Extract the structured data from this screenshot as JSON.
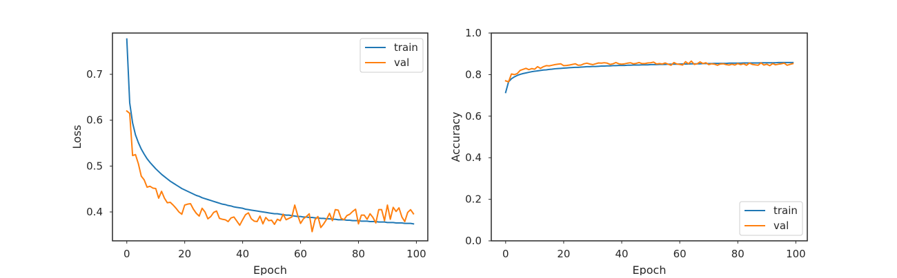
{
  "chart_data": [
    {
      "type": "line",
      "title": "",
      "xlabel": "Epoch",
      "ylabel": "Loss",
      "xlim": [
        -4.95,
        103.95
      ],
      "ylim": [
        0.337,
        0.79
      ],
      "xticks": [
        0,
        20,
        40,
        60,
        80,
        100
      ],
      "xtick_labels": [
        "0",
        "20",
        "40",
        "60",
        "80",
        "100"
      ],
      "yticks": [
        0.4,
        0.5,
        0.6,
        0.7
      ],
      "ytick_labels": [
        "0.4",
        "0.5",
        "0.6",
        "0.7"
      ],
      "grid": false,
      "legend": "top-right",
      "series": [
        {
          "name": "train",
          "color": "#1f77b4",
          "x": [
            0,
            1,
            2,
            3,
            4,
            5,
            6,
            7,
            8,
            9,
            10,
            11,
            12,
            13,
            14,
            15,
            16,
            17,
            18,
            19,
            20,
            21,
            22,
            23,
            24,
            25,
            26,
            27,
            28,
            29,
            30,
            31,
            32,
            33,
            34,
            35,
            36,
            37,
            38,
            39,
            40,
            41,
            42,
            43,
            44,
            45,
            46,
            47,
            48,
            49,
            50,
            51,
            52,
            53,
            54,
            55,
            56,
            57,
            58,
            59,
            60,
            61,
            62,
            63,
            64,
            65,
            66,
            67,
            68,
            69,
            70,
            71,
            72,
            73,
            74,
            75,
            76,
            77,
            78,
            79,
            80,
            81,
            82,
            83,
            84,
            85,
            86,
            87,
            88,
            89,
            90,
            91,
            92,
            93,
            94,
            95,
            96,
            97,
            98,
            99
          ],
          "values": [
            0.777,
            0.638,
            0.594,
            0.568,
            0.551,
            0.537,
            0.526,
            0.516,
            0.508,
            0.501,
            0.494,
            0.488,
            0.482,
            0.477,
            0.472,
            0.467,
            0.463,
            0.459,
            0.455,
            0.451,
            0.448,
            0.445,
            0.442,
            0.439,
            0.436,
            0.434,
            0.431,
            0.429,
            0.427,
            0.425,
            0.423,
            0.421,
            0.419,
            0.417,
            0.416,
            0.414,
            0.413,
            0.411,
            0.41,
            0.409,
            0.408,
            0.406,
            0.405,
            0.404,
            0.403,
            0.402,
            0.401,
            0.4,
            0.399,
            0.398,
            0.397,
            0.396,
            0.396,
            0.395,
            0.394,
            0.393,
            0.393,
            0.392,
            0.391,
            0.39,
            0.39,
            0.389,
            0.389,
            0.388,
            0.388,
            0.387,
            0.387,
            0.386,
            0.386,
            0.385,
            0.385,
            0.384,
            0.384,
            0.383,
            0.383,
            0.383,
            0.382,
            0.382,
            0.381,
            0.381,
            0.381,
            0.38,
            0.38,
            0.38,
            0.379,
            0.379,
            0.379,
            0.378,
            0.378,
            0.378,
            0.377,
            0.377,
            0.377,
            0.376,
            0.376,
            0.376,
            0.375,
            0.375,
            0.375,
            0.374
          ]
        },
        {
          "name": "val",
          "color": "#ff7f0e",
          "x": [
            0,
            1,
            2,
            3,
            4,
            5,
            6,
            7,
            8,
            9,
            10,
            11,
            12,
            13,
            14,
            15,
            16,
            17,
            18,
            19,
            20,
            21,
            22,
            23,
            24,
            25,
            26,
            27,
            28,
            29,
            30,
            31,
            32,
            33,
            34,
            35,
            36,
            37,
            38,
            39,
            40,
            41,
            42,
            43,
            44,
            45,
            46,
            47,
            48,
            49,
            50,
            51,
            52,
            53,
            54,
            55,
            56,
            57,
            58,
            59,
            60,
            61,
            62,
            63,
            64,
            65,
            66,
            67,
            68,
            69,
            70,
            71,
            72,
            73,
            74,
            75,
            76,
            77,
            78,
            79,
            80,
            81,
            82,
            83,
            84,
            85,
            86,
            87,
            88,
            89,
            90,
            91,
            92,
            93,
            94,
            95,
            96,
            97,
            98,
            99
          ],
          "values": [
            0.62,
            0.615,
            0.523,
            0.525,
            0.505,
            0.478,
            0.47,
            0.454,
            0.456,
            0.452,
            0.451,
            0.43,
            0.445,
            0.43,
            0.42,
            0.421,
            0.415,
            0.408,
            0.4,
            0.395,
            0.415,
            0.417,
            0.418,
            0.406,
            0.397,
            0.391,
            0.408,
            0.4,
            0.385,
            0.39,
            0.399,
            0.402,
            0.386,
            0.384,
            0.383,
            0.379,
            0.387,
            0.389,
            0.38,
            0.371,
            0.383,
            0.394,
            0.398,
            0.385,
            0.38,
            0.379,
            0.391,
            0.374,
            0.388,
            0.381,
            0.382,
            0.373,
            0.384,
            0.381,
            0.395,
            0.383,
            0.386,
            0.389,
            0.415,
            0.393,
            0.375,
            0.385,
            0.39,
            0.396,
            0.357,
            0.383,
            0.39,
            0.366,
            0.374,
            0.384,
            0.397,
            0.381,
            0.405,
            0.404,
            0.386,
            0.383,
            0.392,
            0.395,
            0.401,
            0.406,
            0.374,
            0.393,
            0.393,
            0.384,
            0.396,
            0.388,
            0.376,
            0.405,
            0.405,
            0.381,
            0.415,
            0.384,
            0.41,
            0.401,
            0.409,
            0.389,
            0.379,
            0.399,
            0.405,
            0.396
          ]
        }
      ]
    },
    {
      "type": "line",
      "title": "",
      "xlabel": "Epoch",
      "ylabel": "Accuracy",
      "xlim": [
        -4.95,
        103.95
      ],
      "ylim": [
        0.0,
        1.0
      ],
      "xticks": [
        0,
        20,
        40,
        60,
        80,
        100
      ],
      "xtick_labels": [
        "0",
        "20",
        "40",
        "60",
        "80",
        "100"
      ],
      "yticks": [
        0.0,
        0.2,
        0.4,
        0.6,
        0.8,
        1.0
      ],
      "ytick_labels": [
        "0.0",
        "0.2",
        "0.4",
        "0.6",
        "0.8",
        "1.0"
      ],
      "grid": false,
      "legend": "bottom-right",
      "series": [
        {
          "name": "train",
          "color": "#1f77b4",
          "x": [
            0,
            1,
            2,
            3,
            4,
            5,
            6,
            7,
            8,
            9,
            10,
            11,
            12,
            13,
            14,
            15,
            16,
            17,
            18,
            19,
            20,
            21,
            22,
            23,
            24,
            25,
            26,
            27,
            28,
            29,
            30,
            31,
            32,
            33,
            34,
            35,
            36,
            37,
            38,
            39,
            40,
            41,
            42,
            43,
            44,
            45,
            46,
            47,
            48,
            49,
            50,
            51,
            52,
            53,
            54,
            55,
            56,
            57,
            58,
            59,
            60,
            61,
            62,
            63,
            64,
            65,
            66,
            67,
            68,
            69,
            70,
            71,
            72,
            73,
            74,
            75,
            76,
            77,
            78,
            79,
            80,
            81,
            82,
            83,
            84,
            85,
            86,
            87,
            88,
            89,
            90,
            91,
            92,
            93,
            94,
            95,
            96,
            97,
            98,
            99
          ],
          "values": [
            0.714,
            0.765,
            0.78,
            0.789,
            0.796,
            0.801,
            0.805,
            0.808,
            0.811,
            0.814,
            0.816,
            0.818,
            0.82,
            0.822,
            0.823,
            0.825,
            0.826,
            0.828,
            0.829,
            0.83,
            0.831,
            0.832,
            0.833,
            0.834,
            0.835,
            0.835,
            0.836,
            0.837,
            0.838,
            0.838,
            0.839,
            0.839,
            0.84,
            0.841,
            0.841,
            0.842,
            0.842,
            0.843,
            0.843,
            0.844,
            0.844,
            0.844,
            0.845,
            0.845,
            0.846,
            0.846,
            0.846,
            0.847,
            0.847,
            0.847,
            0.848,
            0.848,
            0.848,
            0.849,
            0.849,
            0.849,
            0.85,
            0.85,
            0.85,
            0.85,
            0.851,
            0.851,
            0.851,
            0.851,
            0.852,
            0.852,
            0.852,
            0.852,
            0.853,
            0.853,
            0.853,
            0.853,
            0.854,
            0.854,
            0.854,
            0.854,
            0.854,
            0.855,
            0.855,
            0.855,
            0.855,
            0.855,
            0.856,
            0.856,
            0.856,
            0.856,
            0.856,
            0.856,
            0.857,
            0.857,
            0.857,
            0.857,
            0.857,
            0.857,
            0.858,
            0.858,
            0.858,
            0.858,
            0.858,
            0.858
          ]
        },
        {
          "name": "val",
          "color": "#ff7f0e",
          "x": [
            0,
            1,
            2,
            3,
            4,
            5,
            6,
            7,
            8,
            9,
            10,
            11,
            12,
            13,
            14,
            15,
            16,
            17,
            18,
            19,
            20,
            21,
            22,
            23,
            24,
            25,
            26,
            27,
            28,
            29,
            30,
            31,
            32,
            33,
            34,
            35,
            36,
            37,
            38,
            39,
            40,
            41,
            42,
            43,
            44,
            45,
            46,
            47,
            48,
            49,
            50,
            51,
            52,
            53,
            54,
            55,
            56,
            57,
            58,
            59,
            60,
            61,
            62,
            63,
            64,
            65,
            66,
            67,
            68,
            69,
            70,
            71,
            72,
            73,
            74,
            75,
            76,
            77,
            78,
            79,
            80,
            81,
            82,
            83,
            84,
            85,
            86,
            87,
            88,
            89,
            90,
            91,
            92,
            93,
            94,
            95,
            96,
            97,
            98,
            99
          ],
          "values": [
            0.77,
            0.765,
            0.803,
            0.8,
            0.805,
            0.82,
            0.825,
            0.83,
            0.824,
            0.829,
            0.826,
            0.838,
            0.83,
            0.838,
            0.843,
            0.842,
            0.845,
            0.848,
            0.85,
            0.852,
            0.843,
            0.844,
            0.846,
            0.849,
            0.852,
            0.845,
            0.846,
            0.852,
            0.855,
            0.851,
            0.848,
            0.852,
            0.856,
            0.855,
            0.857,
            0.855,
            0.849,
            0.852,
            0.858,
            0.852,
            0.85,
            0.852,
            0.855,
            0.857,
            0.852,
            0.854,
            0.858,
            0.853,
            0.853,
            0.856,
            0.857,
            0.86,
            0.851,
            0.853,
            0.851,
            0.856,
            0.85,
            0.845,
            0.858,
            0.851,
            0.849,
            0.846,
            0.862,
            0.852,
            0.865,
            0.849,
            0.852,
            0.861,
            0.853,
            0.857,
            0.848,
            0.852,
            0.85,
            0.845,
            0.851,
            0.852,
            0.848,
            0.846,
            0.85,
            0.846,
            0.853,
            0.848,
            0.852,
            0.845,
            0.855,
            0.849,
            0.847,
            0.845,
            0.856,
            0.846,
            0.85,
            0.843,
            0.853,
            0.847,
            0.85,
            0.852,
            0.855,
            0.845,
            0.849,
            0.853
          ]
        }
      ]
    }
  ]
}
